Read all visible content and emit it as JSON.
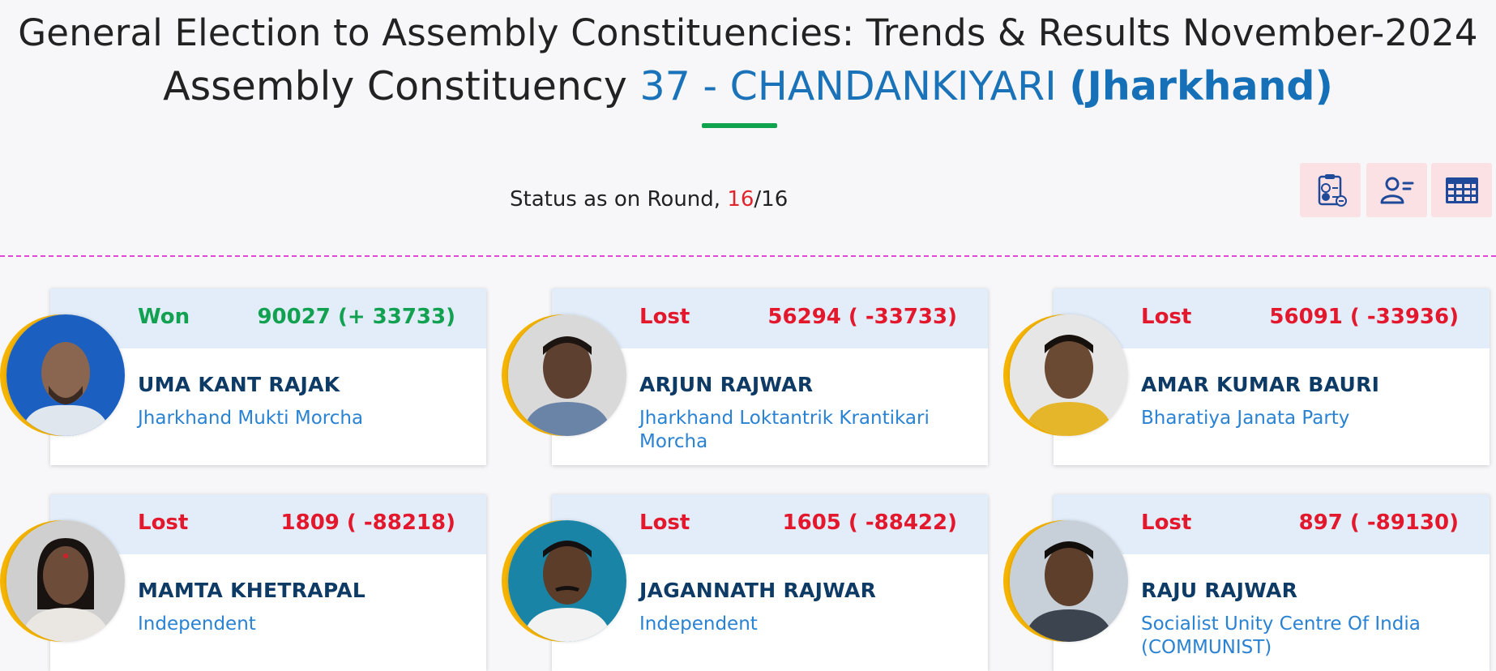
{
  "header": {
    "title": "General Election to Assembly Constituencies: Trends & Results November-2024",
    "subtitle_prefix": "Assembly Constituency ",
    "constituency": "37 - CHANDANKIYARI",
    "state": "(Jharkhand)"
  },
  "status": {
    "label": "Status as on Round, ",
    "current_round": "16",
    "separator": "/",
    "total_rounds": "16"
  },
  "toolbar": {
    "buttons": [
      "report-icon",
      "candidate-list-icon",
      "table-grid-icon"
    ],
    "icon_color": "#1e4a99",
    "button_bg": "#fbe1e4"
  },
  "colors": {
    "won": "#12a150",
    "lost": "#e3182d",
    "name": "#0e3a66",
    "party": "#2a82d3",
    "accent_ring": "#f5b400",
    "divider": "#e148d8"
  },
  "candidates": [
    {
      "status": "Won",
      "votes": "90027 (+ 33733)",
      "name": "UMA KANT RAJAK",
      "party": "Jharkhand Mukti Morcha",
      "photo_bg": "#1b5fc0",
      "skin": "#8a6650"
    },
    {
      "status": "Lost",
      "votes": "56294 ( -33733)",
      "name": "ARJUN RAJWAR",
      "party": "Jharkhand Loktantrik Krantikari Morcha",
      "photo_bg": "#d9d9d9",
      "skin": "#5e4030"
    },
    {
      "status": "Lost",
      "votes": "56091 ( -33936)",
      "name": "AMAR KUMAR BAURI",
      "party": "Bharatiya Janata Party",
      "photo_bg": "#e6e6e6",
      "skin": "#6b4a33"
    },
    {
      "status": "Lost",
      "votes": "1809 ( -88218)",
      "name": "MAMTA KHETRAPAL",
      "party": "Independent",
      "photo_bg": "#cfcfcf",
      "skin": "#6e4c3a"
    },
    {
      "status": "Lost",
      "votes": "1605 ( -88422)",
      "name": "JAGANNATH RAJWAR",
      "party": "Independent",
      "photo_bg": "#1a84a6",
      "skin": "#5c3d2a"
    },
    {
      "status": "Lost",
      "votes": "897 ( -89130)",
      "name": "RAJU RAJWAR",
      "party": "Socialist Unity Centre Of India (COMMUNIST)",
      "photo_bg": "#c7d0d8",
      "skin": "#5d3f2b"
    }
  ]
}
